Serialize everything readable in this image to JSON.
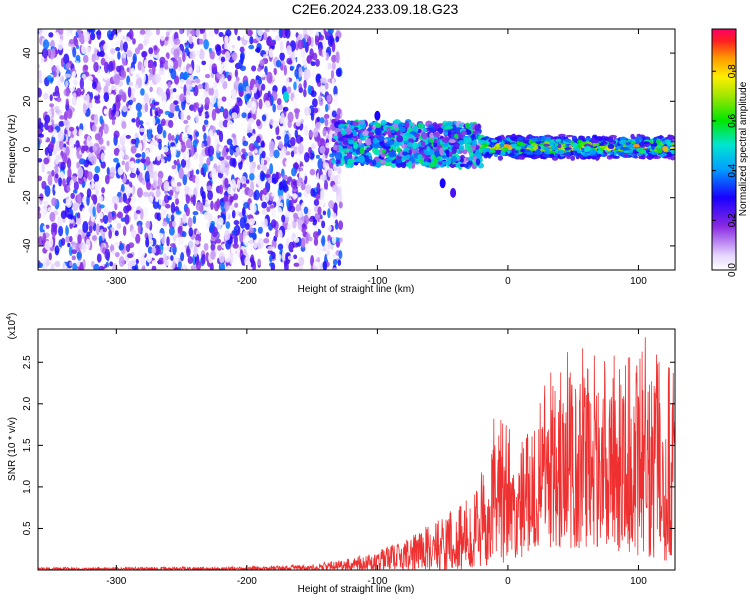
{
  "title": "C2E6.2024.233.09.18.G23",
  "chart_data": [
    {
      "type": "heatmap",
      "xlabel": "Height of straight line (km)",
      "ylabel": "Frequency (Hz)",
      "xlim": [
        -360,
        128
      ],
      "ylim": [
        -50,
        50
      ],
      "x_ticks": [
        -300,
        -200,
        -100,
        0,
        100
      ],
      "y_ticks": [
        -40,
        -20,
        0,
        20,
        40
      ],
      "colorbar": {
        "label": "Normalized spectral amplitude",
        "range": [
          0.0,
          0.97
        ],
        "ticks": [
          0.0,
          0.2,
          0.4,
          0.6,
          0.8
        ]
      },
      "regions": [
        {
          "x": [
            -360,
            -128
          ],
          "freq": [
            -50,
            50
          ],
          "amplitude": [
            0.0,
            0.4
          ],
          "description": "broadband noise"
        },
        {
          "x": [
            -135,
            -20
          ],
          "freq": [
            -6,
            12
          ],
          "amplitude": [
            0.1,
            0.6
          ]
        },
        {
          "x": [
            -20,
            128
          ],
          "freq": [
            -4,
            6
          ],
          "amplitude": [
            0.2,
            0.95
          ]
        }
      ],
      "features": [
        {
          "x": -170,
          "freq": 22,
          "amplitude": 0.5
        },
        {
          "x": -100,
          "freq": 14,
          "amplitude": 0.3
        },
        {
          "x": -50,
          "freq": -14,
          "amplitude": 0.3
        },
        {
          "x": -42,
          "freq": -18,
          "amplitude": 0.25
        }
      ]
    },
    {
      "type": "line",
      "xlabel": "Height of straight line (km)",
      "ylabel": "SNR (10 * v/v)",
      "y_multiplier": "(x10",
      "y_multiplier_exp": "4",
      "y_multiplier_close": ")",
      "xlim": [
        -360,
        128
      ],
      "ylim": [
        0,
        29000
      ],
      "x_ticks": [
        -300,
        -200,
        -100,
        0,
        100
      ],
      "y_ticks": [
        0.5,
        1.0,
        1.5,
        2.0,
        2.5
      ],
      "series": [
        {
          "color": "#ee3030",
          "envelope": [
            {
              "x": -360,
              "lower": 0,
              "upper": 300
            },
            {
              "x": -200,
              "lower": 0,
              "upper": 400
            },
            {
              "x": -150,
              "lower": 0,
              "upper": 700
            },
            {
              "x": -120,
              "lower": 0,
              "upper": 1500
            },
            {
              "x": -100,
              "lower": 0,
              "upper": 2500
            },
            {
              "x": -80,
              "lower": 0,
              "upper": 3500
            },
            {
              "x": -60,
              "lower": 0,
              "upper": 5500
            },
            {
              "x": -40,
              "lower": 0,
              "upper": 7500
            },
            {
              "x": -25,
              "lower": 200,
              "upper": 9500
            },
            {
              "x": -10,
              "lower": 500,
              "upper": 19000
            },
            {
              "x": 10,
              "lower": 1500,
              "upper": 16000
            },
            {
              "x": 25,
              "lower": 3000,
              "upper": 21000
            },
            {
              "x": 40,
              "lower": 2500,
              "upper": 27000
            },
            {
              "x": 70,
              "lower": 2500,
              "upper": 27000
            },
            {
              "x": 100,
              "lower": 1500,
              "upper": 29000
            },
            {
              "x": 128,
              "lower": 1000,
              "upper": 24000
            }
          ]
        }
      ]
    }
  ]
}
